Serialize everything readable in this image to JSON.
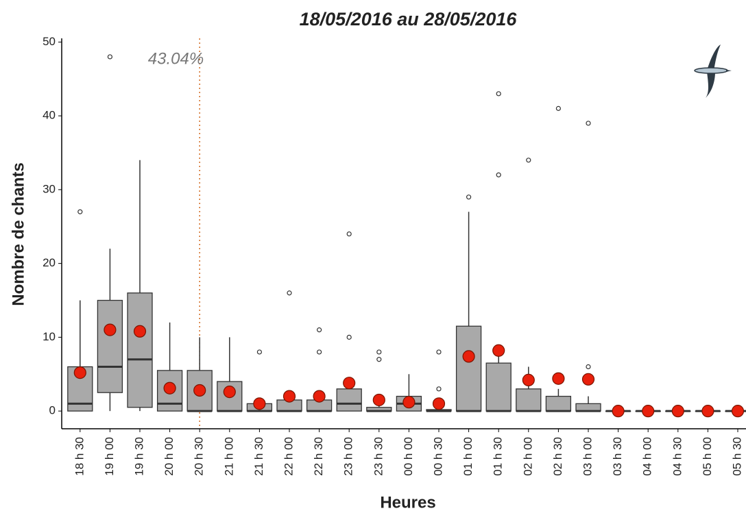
{
  "chart_data": {
    "type": "boxplot",
    "title": "18/05/2016 au 28/05/2016",
    "x_label": "Heures",
    "y_label": "Nombre de chants",
    "annotation": "43.04%",
    "vline": "20 h 30",
    "categories": [
      "18 h 30",
      "19 h 00",
      "19 h 30",
      "20 h 00",
      "20 h 30",
      "21 h 00",
      "21 h 30",
      "22 h 00",
      "22 h 30",
      "23 h 00",
      "23 h 30",
      "00 h 00",
      "00 h 30",
      "01 h 00",
      "01 h 30",
      "02 h 00",
      "02 h 30",
      "03 h 00",
      "03 h 30",
      "04 h 00",
      "04 h 30",
      "05 h 00",
      "05 h 30"
    ],
    "box_color": "#a9a9a9",
    "mean_color": "#e8200c",
    "boxes": [
      {
        "whisker_low": 0,
        "q1": 0,
        "median": 1,
        "q3": 6,
        "whisker_high": 15,
        "outliers": [
          27
        ],
        "mean": 5.2
      },
      {
        "whisker_low": 0,
        "q1": 2.5,
        "median": 6,
        "q3": 15,
        "whisker_high": 22,
        "outliers": [
          48
        ],
        "mean": 11
      },
      {
        "whisker_low": 0,
        "q1": 0.5,
        "median": 7,
        "q3": 16,
        "whisker_high": 34,
        "outliers": [],
        "mean": 10.8
      },
      {
        "whisker_low": 0,
        "q1": 0,
        "median": 1,
        "q3": 5.5,
        "whisker_high": 12,
        "outliers": [],
        "mean": 3.1
      },
      {
        "whisker_low": 0,
        "q1": 0,
        "median": 0,
        "q3": 5.5,
        "whisker_high": 10,
        "outliers": [],
        "mean": 2.8
      },
      {
        "whisker_low": 0,
        "q1": 0,
        "median": 0,
        "q3": 4,
        "whisker_high": 10,
        "outliers": [],
        "mean": 2.6
      },
      {
        "whisker_low": 0,
        "q1": 0,
        "median": 0,
        "q3": 1,
        "whisker_high": 1,
        "outliers": [
          8
        ],
        "mean": 1.0
      },
      {
        "whisker_low": 0,
        "q1": 0,
        "median": 0,
        "q3": 1.5,
        "whisker_high": 2.5,
        "outliers": [
          16
        ],
        "mean": 2.0
      },
      {
        "whisker_low": 0,
        "q1": 0,
        "median": 0,
        "q3": 1.5,
        "whisker_high": 2,
        "outliers": [
          8,
          11
        ],
        "mean": 2.0
      },
      {
        "whisker_low": 0,
        "q1": 0,
        "median": 1,
        "q3": 3,
        "whisker_high": 3,
        "outliers": [
          10,
          24
        ],
        "mean": 3.8
      },
      {
        "whisker_low": 0,
        "q1": 0,
        "median": 0,
        "q3": 0.5,
        "whisker_high": 1,
        "outliers": [
          7,
          8
        ],
        "mean": 1.5
      },
      {
        "whisker_low": 0,
        "q1": 0,
        "median": 1,
        "q3": 2,
        "whisker_high": 5,
        "outliers": [],
        "mean": 1.2
      },
      {
        "whisker_low": 0,
        "q1": 0,
        "median": 0,
        "q3": 0.2,
        "whisker_high": 0.2,
        "outliers": [
          3,
          8
        ],
        "mean": 1.0
      },
      {
        "whisker_low": 0,
        "q1": 0,
        "median": 0,
        "q3": 11.5,
        "whisker_high": 27,
        "outliers": [
          29
        ],
        "mean": 7.4
      },
      {
        "whisker_low": 0,
        "q1": 0,
        "median": 0,
        "q3": 6.5,
        "whisker_high": 8,
        "outliers": [
          32,
          43
        ],
        "mean": 8.2
      },
      {
        "whisker_low": 0,
        "q1": 0,
        "median": 0,
        "q3": 3,
        "whisker_high": 6,
        "outliers": [
          34
        ],
        "mean": 4.2
      },
      {
        "whisker_low": 0,
        "q1": 0,
        "median": 0,
        "q3": 2,
        "whisker_high": 3,
        "outliers": [
          41
        ],
        "mean": 4.4
      },
      {
        "whisker_low": 0,
        "q1": 0,
        "median": 0,
        "q3": 1,
        "whisker_high": 2,
        "outliers": [
          6,
          39
        ],
        "mean": 4.3
      },
      {
        "whisker_low": 0,
        "q1": 0,
        "median": 0,
        "q3": 0,
        "whisker_high": 0,
        "outliers": [],
        "mean": 0
      },
      {
        "whisker_low": 0,
        "q1": 0,
        "median": 0,
        "q3": 0,
        "whisker_high": 0,
        "outliers": [],
        "mean": 0
      },
      {
        "whisker_low": 0,
        "q1": 0,
        "median": 0,
        "q3": 0,
        "whisker_high": 0,
        "outliers": [],
        "mean": 0
      },
      {
        "whisker_low": 0,
        "q1": 0,
        "median": 0,
        "q3": 0,
        "whisker_high": 0,
        "outliers": [],
        "mean": 0
      },
      {
        "whisker_low": 0,
        "q1": 0,
        "median": 0,
        "q3": 0,
        "whisker_high": 0,
        "outliers": [],
        "mean": 0
      }
    ],
    "ylim": [
      -2.4,
      50.5
    ],
    "yticks": [
      0,
      10,
      20,
      30,
      40,
      50
    ],
    "grid": false
  }
}
